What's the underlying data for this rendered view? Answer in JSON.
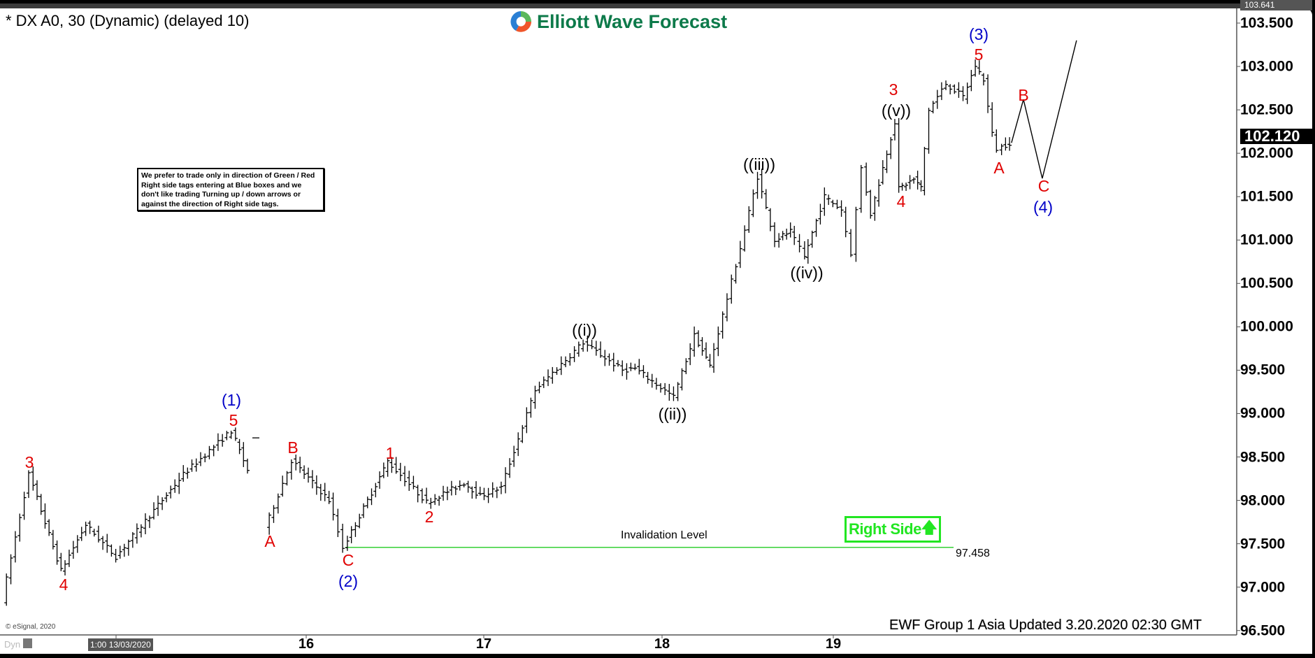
{
  "header": {
    "title": "* DX A0, 30 (Dynamic) (delayed 10)",
    "logo_text": "Elliott Wave Forecast"
  },
  "note": "We prefer to trade only in direction of Green / Red Right side tags entering at Blue boxes and we don't like trading Turning up / down arrows or against the direction of Right side tags.",
  "right_side": {
    "label": "Right Side",
    "icon": "arrow-up-icon",
    "color": "#22e622"
  },
  "invalidation": {
    "label": "Invalidation Level",
    "value": "97.458",
    "price": 97.458,
    "color": "#22cc22"
  },
  "footer": {
    "updated": "EWF Group 1 Asia Updated 3.20.2020 02:30 GMT",
    "copyright": "© eSignal, 2020",
    "dyn": "Dyn"
  },
  "price_tags": {
    "current": "102.120",
    "top": "103.641"
  },
  "chart_data": {
    "type": "ohlc-bar",
    "instrument": "DX A0, 30",
    "y_ticks": [
      "103.500",
      "103.000",
      "102.500",
      "102.000",
      "101.500",
      "101.000",
      "100.500",
      "100.000",
      "99.500",
      "99.000",
      "98.500",
      "98.000",
      "97.500",
      "97.000",
      "96.500"
    ],
    "ylim": [
      96.5,
      103.641
    ],
    "x_ticks": [
      {
        "day": 16,
        "label": "16"
      },
      {
        "day": 17,
        "label": "17"
      },
      {
        "day": 18,
        "label": "18"
      },
      {
        "day": 19,
        "label": "19"
      }
    ],
    "x_start_label": "1:00 13/03/2020",
    "price_path": [
      [
        14.3,
        96.85
      ],
      [
        14.45,
        98.3
      ],
      [
        14.63,
        97.19
      ],
      [
        14.77,
        97.72
      ],
      [
        14.94,
        97.35
      ],
      [
        15.32,
        98.3
      ],
      [
        15.59,
        98.8
      ],
      [
        15.68,
        98.35
      ],
      null,
      [
        15.78,
        97.67
      ],
      [
        15.93,
        98.46
      ],
      [
        16.14,
        98.0
      ],
      [
        16.22,
        97.46
      ],
      [
        16.47,
        98.45
      ],
      [
        16.69,
        97.98
      ],
      [
        16.9,
        98.2
      ],
      [
        16.99,
        98.05
      ],
      [
        17.11,
        98.15
      ],
      [
        17.3,
        99.27
      ],
      [
        17.57,
        99.82
      ],
      [
        17.79,
        99.5
      ],
      [
        17.86,
        99.52
      ],
      [
        18.08,
        99.19
      ],
      [
        18.2,
        99.9
      ],
      [
        18.29,
        99.55
      ],
      [
        18.47,
        100.91
      ],
      [
        18.57,
        101.73
      ],
      [
        18.67,
        101.0
      ],
      [
        18.76,
        101.1
      ],
      [
        18.82,
        100.9
      ],
      [
        18.84,
        100.8
      ],
      [
        18.96,
        101.5
      ],
      [
        19.06,
        101.35
      ],
      [
        19.12,
        100.85
      ],
      [
        19.18,
        101.83
      ],
      [
        19.23,
        101.3
      ],
      [
        19.37,
        102.36
      ],
      [
        19.39,
        101.59
      ],
      [
        19.48,
        101.7
      ],
      [
        19.52,
        101.6
      ],
      [
        19.57,
        102.5
      ],
      [
        19.67,
        102.8
      ],
      [
        19.77,
        102.65
      ],
      [
        19.84,
        103.01
      ],
      [
        19.89,
        102.85
      ],
      [
        19.94,
        102.22
      ],
      [
        19.97,
        102.05
      ],
      [
        20.04,
        102.12
      ]
    ],
    "projection": [
      [
        20.04,
        102.12
      ],
      [
        20.11,
        102.62
      ],
      [
        20.22,
        101.71
      ],
      [
        20.42,
        103.3
      ]
    ],
    "wave_labels": {
      "red": [
        "3",
        "4",
        "5",
        "A",
        "B",
        "C",
        "1",
        "2",
        "3",
        "4",
        "5",
        "A",
        "B",
        "C"
      ],
      "blue": [
        "(1)",
        "(2)",
        "(3)",
        "(4)"
      ],
      "black": [
        "((i))",
        "((ii))",
        "((iii))",
        "((iv))",
        "((v))"
      ]
    },
    "colors": {
      "bars": "#000000",
      "red_labels": "#e00000",
      "blue_labels": "#0000c8",
      "invalidation_line": "#22cc22"
    }
  }
}
